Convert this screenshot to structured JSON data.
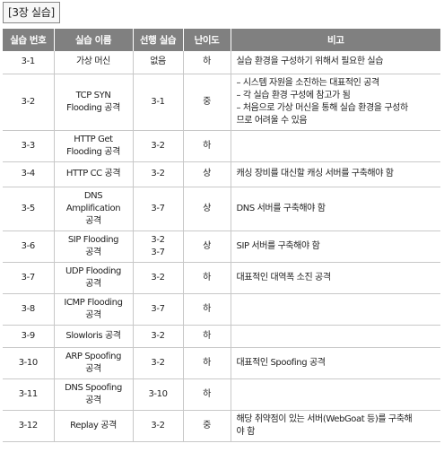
{
  "caption": "[3장 실습]",
  "headers": [
    "실습 번호",
    "실습 이름",
    "선행 실습",
    "난이도",
    "비고"
  ],
  "rows": [
    {
      "num": "3-1",
      "name": [
        "가상 머신"
      ],
      "prereq": [
        "없음"
      ],
      "level": "하",
      "note": [
        "실습 환경을 구성하기 위해서 필요한 실습"
      ]
    },
    {
      "num": "3-2",
      "name": [
        "TCP SYN",
        "Flooding 공격"
      ],
      "prereq": [
        "3-1"
      ],
      "level": "중",
      "note": [
        "– 시스템 자원을 소진하는 대표적인 공격",
        "– 각 실습 환경 구성에 참고가 됨",
        "– 처음으로 가상 머신을 통해 실습 환경을 구성하",
        "므로 어려울 수 있음"
      ]
    },
    {
      "num": "3-3",
      "name": [
        "HTTP Get",
        "Flooding 공격"
      ],
      "prereq": [
        "3-2"
      ],
      "level": "하",
      "note": []
    },
    {
      "num": "3-4",
      "name": [
        "HTTP CC 공격"
      ],
      "prereq": [
        "3-2"
      ],
      "level": "상",
      "note": [
        "캐싱 장비를 대신할 캐싱 서버를 구축해야 함"
      ]
    },
    {
      "num": "3-5",
      "name": [
        "DNS",
        "Amplification",
        "공격"
      ],
      "prereq": [
        "3-7"
      ],
      "level": "상",
      "note": [
        "DNS 서버를 구축해야 함"
      ]
    },
    {
      "num": "3-6",
      "name": [
        "SIP Flooding",
        "공격"
      ],
      "prereq": [
        "3-2",
        "3-7"
      ],
      "level": "상",
      "note": [
        "SIP 서버를 구축해야 함"
      ]
    },
    {
      "num": "3-7",
      "name": [
        "UDP Flooding",
        "공격"
      ],
      "prereq": [
        "3-2"
      ],
      "level": "하",
      "note": [
        "대표적인 대역폭 소진 공격"
      ]
    },
    {
      "num": "3-8",
      "name": [
        "ICMP Flooding",
        "공격"
      ],
      "prereq": [
        "3-7"
      ],
      "level": "하",
      "note": []
    },
    {
      "num": "3-9",
      "name": [
        "Slowloris 공격"
      ],
      "prereq": [
        "3-2"
      ],
      "level": "하",
      "note": []
    },
    {
      "num": "3-10",
      "name": [
        "ARP Spoofing",
        "공격"
      ],
      "prereq": [
        "3-2"
      ],
      "level": "하",
      "note": [
        "대표적인 Spoofing 공격"
      ]
    },
    {
      "num": "3-11",
      "name": [
        "DNS Spoofing",
        "공격"
      ],
      "prereq": [
        "3-10"
      ],
      "level": "하",
      "note": []
    },
    {
      "num": "3-12",
      "name": [
        "Replay 공격"
      ],
      "prereq": [
        "3-2"
      ],
      "level": "중",
      "note": [
        "해당 취약점이 있는 서버(WebGoat 등)를 구축해",
        "야 함"
      ]
    }
  ]
}
